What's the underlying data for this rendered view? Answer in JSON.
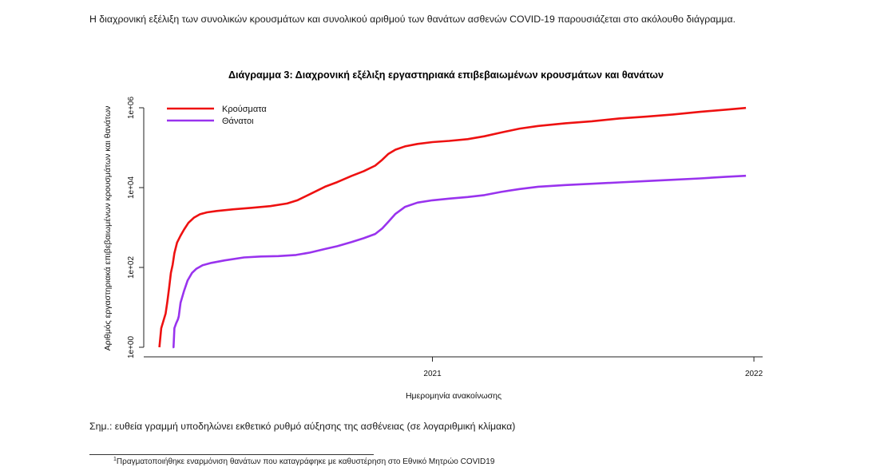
{
  "intro_text": "Η διαχρονική εξέλιξη των συνολικών κρουσμάτων και συνολικού αριθμού των θανάτων ασθενών COVID-19 παρουσιάζεται στο ακόλουθο διάγραμμα.",
  "note_text": "Σημ.: ευθεία γραμμή υποδηλώνει εκθετικό ρυθμό αύξησης της ασθένειας (σε λογαριθμική κλίμακα)",
  "footnote": {
    "marker": "1",
    "text": "Πραγματοποιήθηκε εναρμόνιση θανάτων που καταγράφηκε με καθυστέρηση στο Εθνικό Μητρώο COVID19"
  },
  "chart_data": {
    "type": "line",
    "title": "Διάγραμμα 3: Διαχρονική εξέλιξη εργαστηριακά επιβεβαιωμένων κρουσμάτων και θανάτων",
    "xlabel": "Ημερομηνία ανακοίνωσης",
    "ylabel": "Αριθμός εργαστηριακά επιβεβαιωμένων κρουσμάτων και θανάτων",
    "y_scale": "log",
    "ylim": [
      1,
      1000000
    ],
    "y_ticks": [
      {
        "value": 1,
        "label": "1e+00"
      },
      {
        "value": 100,
        "label": "1e+02"
      },
      {
        "value": 10000,
        "label": "1e+04"
      },
      {
        "value": 1000000,
        "label": "1e+06"
      }
    ],
    "x_ticks": [
      {
        "value": "2021-01-01",
        "label": "2021"
      },
      {
        "value": "2022-01-01",
        "label": "2022"
      }
    ],
    "x_range": [
      "2020-02-10",
      "2022-01-10"
    ],
    "legend_position": "top-left",
    "grid": false,
    "series": [
      {
        "name": "Κρούσματα",
        "color": "#ee1111",
        "points": [
          [
            "2020-02-26",
            1
          ],
          [
            "2020-02-28",
            3
          ],
          [
            "2020-03-02",
            5
          ],
          [
            "2020-03-04",
            7
          ],
          [
            "2020-03-06",
            14
          ],
          [
            "2020-03-08",
            31
          ],
          [
            "2020-03-10",
            73
          ],
          [
            "2020-03-12",
            117
          ],
          [
            "2020-03-14",
            228
          ],
          [
            "2020-03-17",
            418
          ],
          [
            "2020-03-21",
            624
          ],
          [
            "2020-03-25",
            892
          ],
          [
            "2020-03-30",
            1314
          ],
          [
            "2020-04-05",
            1755
          ],
          [
            "2020-04-12",
            2145
          ],
          [
            "2020-04-20",
            2401
          ],
          [
            "2020-05-01",
            2591
          ],
          [
            "2020-05-20",
            2853
          ],
          [
            "2020-06-10",
            3121
          ],
          [
            "2020-07-01",
            3432
          ],
          [
            "2020-07-20",
            4007
          ],
          [
            "2020-08-01",
            4855
          ],
          [
            "2020-08-15",
            6858
          ],
          [
            "2020-09-01",
            10524
          ],
          [
            "2020-09-15",
            13730
          ],
          [
            "2020-10-01",
            19613
          ],
          [
            "2020-10-15",
            25802
          ],
          [
            "2020-10-28",
            35510
          ],
          [
            "2020-11-05",
            50000
          ],
          [
            "2020-11-12",
            70000
          ],
          [
            "2020-11-20",
            89000
          ],
          [
            "2020-12-01",
            108000
          ],
          [
            "2020-12-15",
            124000
          ],
          [
            "2021-01-01",
            138000
          ],
          [
            "2021-01-20",
            148000
          ],
          [
            "2021-02-10",
            164000
          ],
          [
            "2021-03-01",
            193000
          ],
          [
            "2021-03-20",
            240000
          ],
          [
            "2021-04-10",
            300000
          ],
          [
            "2021-05-01",
            350000
          ],
          [
            "2021-06-01",
            410000
          ],
          [
            "2021-07-01",
            460000
          ],
          [
            "2021-08-01",
            540000
          ],
          [
            "2021-09-01",
            600000
          ],
          [
            "2021-10-01",
            680000
          ],
          [
            "2021-11-01",
            790000
          ],
          [
            "2021-12-01",
            900000
          ],
          [
            "2021-12-23",
            990000
          ]
        ]
      },
      {
        "name": "Θάνατοι",
        "color": "#9933ee",
        "points": [
          [
            "2020-03-12",
            1
          ],
          [
            "2020-03-13",
            1
          ],
          [
            "2020-03-14",
            3
          ],
          [
            "2020-03-16",
            4
          ],
          [
            "2020-03-18",
            5
          ],
          [
            "2020-03-19",
            6
          ],
          [
            "2020-03-21",
            13
          ],
          [
            "2020-03-25",
            26
          ],
          [
            "2020-03-29",
            47
          ],
          [
            "2020-04-03",
            73
          ],
          [
            "2020-04-08",
            93
          ],
          [
            "2020-04-15",
            113
          ],
          [
            "2020-04-25",
            130
          ],
          [
            "2020-05-10",
            150
          ],
          [
            "2020-06-01",
            178
          ],
          [
            "2020-06-20",
            188
          ],
          [
            "2020-07-10",
            192
          ],
          [
            "2020-07-30",
            205
          ],
          [
            "2020-08-15",
            235
          ],
          [
            "2020-09-01",
            290
          ],
          [
            "2020-09-15",
            340
          ],
          [
            "2020-10-01",
            430
          ],
          [
            "2020-10-15",
            540
          ],
          [
            "2020-10-28",
            690
          ],
          [
            "2020-11-05",
            950
          ],
          [
            "2020-11-12",
            1400
          ],
          [
            "2020-11-20",
            2200
          ],
          [
            "2020-12-01",
            3300
          ],
          [
            "2020-12-15",
            4200
          ],
          [
            "2021-01-01",
            4800
          ],
          [
            "2021-01-20",
            5300
          ],
          [
            "2021-02-10",
            5800
          ],
          [
            "2021-03-01",
            6500
          ],
          [
            "2021-03-20",
            7800
          ],
          [
            "2021-04-10",
            9200
          ],
          [
            "2021-05-01",
            10500
          ],
          [
            "2021-06-01",
            11600
          ],
          [
            "2021-07-01",
            12500
          ],
          [
            "2021-08-01",
            13500
          ],
          [
            "2021-09-01",
            14600
          ],
          [
            "2021-10-01",
            15700
          ],
          [
            "2021-11-01",
            17000
          ],
          [
            "2021-12-01",
            18700
          ],
          [
            "2021-12-23",
            19800
          ]
        ]
      }
    ]
  }
}
